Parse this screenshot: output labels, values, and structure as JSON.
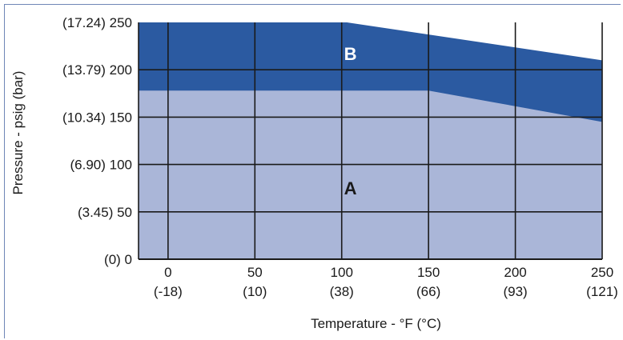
{
  "chart_data": {
    "type": "area",
    "xlabel": "Temperature - °F (°C)",
    "ylabel": "Pressure - psig (bar)",
    "xlim": [
      -17,
      250
    ],
    "ylim": [
      0,
      250
    ],
    "x_ticks": [
      {
        "value": 0,
        "label": "0",
        "sublabel": "(-18)"
      },
      {
        "value": 50,
        "label": "50",
        "sublabel": "(10)"
      },
      {
        "value": 100,
        "label": "100",
        "sublabel": "(38)"
      },
      {
        "value": 150,
        "label": "150",
        "sublabel": "(66)"
      },
      {
        "value": 200,
        "label": "200",
        "sublabel": "(93)"
      },
      {
        "value": 250,
        "label": "250",
        "sublabel": "(121)"
      }
    ],
    "y_ticks": [
      {
        "value": 0,
        "label": "(0) 0"
      },
      {
        "value": 50,
        "label": "(3.45) 50"
      },
      {
        "value": 100,
        "label": "(6.90) 100"
      },
      {
        "value": 150,
        "label": "(10.34) 150"
      },
      {
        "value": 200,
        "label": "(13.79) 200"
      },
      {
        "value": 250,
        "label": "(17.24) 250"
      }
    ],
    "grid": true,
    "regions": [
      {
        "name": "A",
        "color": "#aab6d8",
        "boundary": [
          [
            -17,
            178
          ],
          [
            150,
            178
          ],
          [
            250,
            145
          ]
        ],
        "label_at": [
          105,
          75
        ]
      },
      {
        "name": "B",
        "color": "#2b5aa1",
        "boundary": [
          [
            -17,
            250
          ],
          [
            103,
            250
          ],
          [
            250,
            210
          ]
        ],
        "label_at": [
          105,
          217
        ]
      }
    ],
    "colors": {
      "region_a": "#aab6d8",
      "region_b": "#2b5aa1",
      "grid": "#1a1a1a",
      "label_a": "#1a1a1a",
      "label_b": "#ffffff"
    }
  }
}
